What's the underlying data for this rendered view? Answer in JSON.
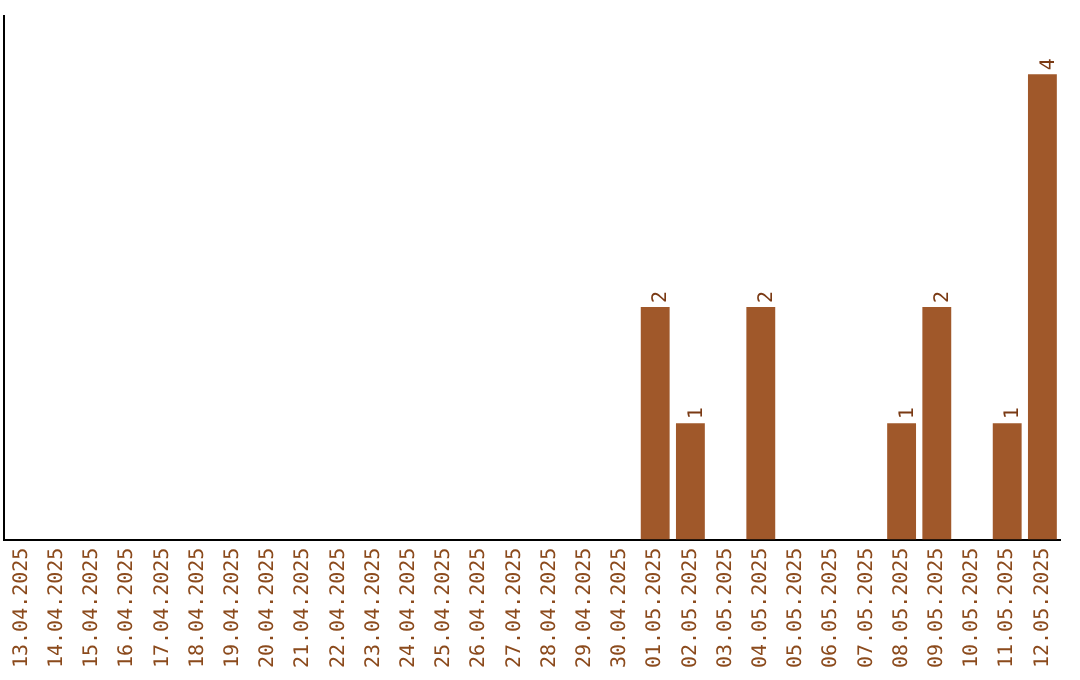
{
  "chart_data": {
    "type": "bar",
    "categories": [
      "13.04.2025",
      "14.04.2025",
      "15.04.2025",
      "16.04.2025",
      "17.04.2025",
      "18.04.2025",
      "19.04.2025",
      "20.04.2025",
      "21.04.2025",
      "22.04.2025",
      "23.04.2025",
      "24.04.2025",
      "25.04.2025",
      "26.04.2025",
      "27.04.2025",
      "28.04.2025",
      "29.04.2025",
      "30.04.2025",
      "01.05.2025",
      "02.05.2025",
      "03.05.2025",
      "04.05.2025",
      "05.05.2025",
      "06.05.2025",
      "07.05.2025",
      "08.05.2025",
      "09.05.2025",
      "10.05.2025",
      "11.05.2025",
      "12.05.2025"
    ],
    "values": [
      null,
      null,
      null,
      null,
      null,
      null,
      null,
      null,
      null,
      null,
      null,
      null,
      null,
      null,
      null,
      null,
      null,
      null,
      2,
      1,
      null,
      2,
      null,
      null,
      null,
      1,
      2,
      null,
      1,
      4
    ],
    "data_labels": true,
    "color": "#a0582a",
    "tick_labels": "x",
    "grid": false,
    "legend": false
  }
}
